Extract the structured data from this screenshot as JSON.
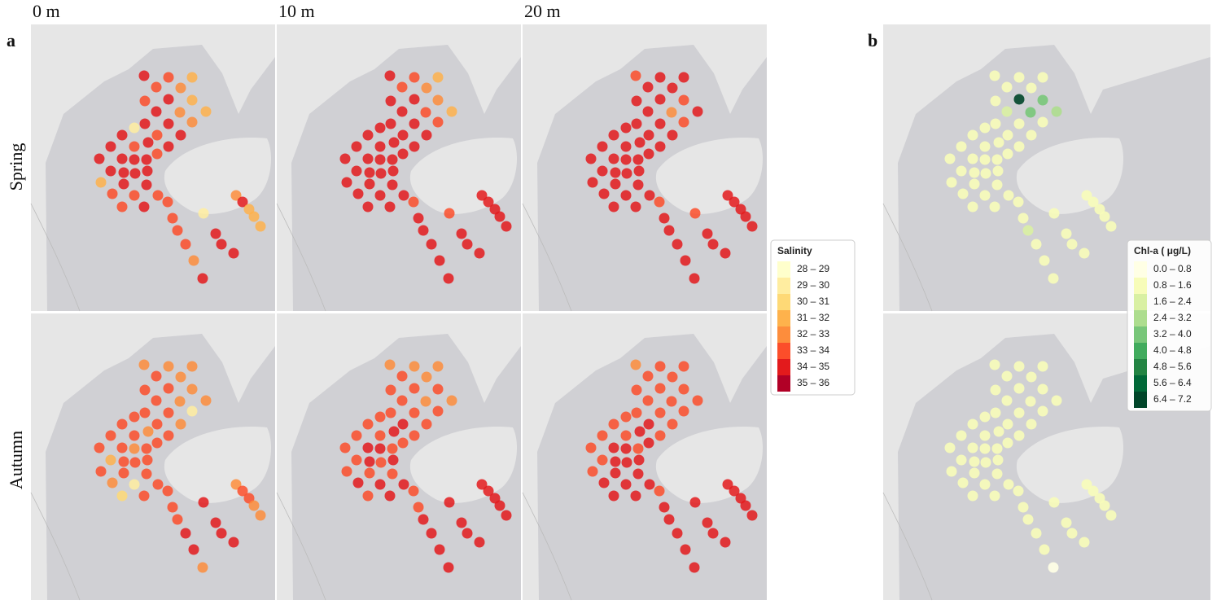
{
  "labels": {
    "a": "a",
    "b": "b"
  },
  "depths": [
    "0 m",
    "10 m",
    "20 m"
  ],
  "seasons": [
    "Spring",
    "Autumn"
  ],
  "salinity_legend": {
    "title": "Salinity",
    "bins": [
      28,
      29,
      30,
      31,
      32,
      33,
      34,
      35,
      36
    ],
    "labels": [
      "28 – 29",
      "29 – 30",
      "30 – 31",
      "31 – 32",
      "32 – 33",
      "33 – 34",
      "34 – 35",
      "35 – 36"
    ],
    "colors": [
      "#ffffcc",
      "#ffeda0",
      "#fed976",
      "#feb24c",
      "#fd8d3c",
      "#fc4e2a",
      "#e31a1c",
      "#b10026"
    ]
  },
  "chl_legend": {
    "title": "Chl-a ( μg/L)",
    "bins": [
      0,
      0.8,
      1.6,
      2.4,
      3.2,
      4.0,
      4.8,
      5.6,
      6.4,
      7.2
    ],
    "labels": [
      "0.0 – 0.8",
      "0.8 – 1.6",
      "1.6 – 2.4",
      "2.4 – 3.2",
      "3.2 – 4.0",
      "4.0 – 4.8",
      "4.8 – 5.6",
      "5.6 – 6.4",
      "6.4 – 7.2"
    ],
    "colors": [
      "#ffffe5",
      "#f7fcb9",
      "#d9f0a3",
      "#addd8e",
      "#78c679",
      "#41ab5d",
      "#238443",
      "#006837",
      "#004529"
    ]
  },
  "salinity": [
    [
      [
        34.5,
        33.5,
        31.5,
        33.5,
        32.5,
        34.5,
        31.5,
        33.5,
        34.5,
        32.5,
        31.5,
        29.5,
        34.5,
        34.5,
        32.5,
        34.5,
        33.5,
        34.5,
        34.5,
        33.5,
        34.5,
        34.5,
        34.5,
        34.5,
        34.5,
        34.5,
        33.5,
        34.5,
        34.5,
        34.5,
        34.5,
        31.5,
        33.5,
        34.5,
        33.5,
        34.5,
        33.5,
        33.5,
        34.5,
        33.5,
        33.5,
        33.5,
        33.5,
        32.5,
        34.5,
        29.5,
        34.5,
        34.5,
        34.5,
        32.5,
        34.5,
        31.5,
        31.5,
        31.5
      ],
      [
        34.5,
        33.5,
        31.5,
        33.5,
        32.5,
        34.5,
        32.5,
        34.5,
        34.5,
        33.5,
        31.5,
        34.5,
        34.5,
        34.5,
        33.5,
        34.5,
        34.5,
        34.5,
        34.5,
        34.5,
        34.5,
        34.5,
        34.5,
        34.5,
        34.5,
        34.5,
        34.5,
        34.5,
        34.5,
        34.5,
        34.5,
        34.5,
        34.5,
        34.5,
        34.5,
        34.5,
        34.5,
        34.5,
        34.5,
        33.5,
        34.5,
        34.5,
        34.5,
        34.5,
        34.5,
        33.5,
        34.5,
        34.5,
        34.5,
        34.5,
        34.5,
        34.5,
        34.5,
        34.5
      ],
      [
        33.5,
        34.5,
        34.5,
        34.5,
        34.5,
        34.5,
        33.5,
        34.5,
        34.5,
        32.5,
        34.5,
        34.5,
        34.5,
        34.5,
        33.5,
        34.5,
        34.5,
        34.5,
        34.5,
        34.5,
        34.5,
        34.5,
        34.5,
        34.5,
        34.5,
        34.5,
        34.5,
        34.5,
        34.5,
        34.5,
        34.5,
        34.5,
        34.5,
        34.5,
        34.5,
        34.5,
        34.5,
        34.5,
        34.5,
        33.5,
        34.5,
        34.5,
        34.5,
        34.5,
        34.5,
        33.5,
        34.5,
        34.5,
        34.5,
        34.5,
        34.5,
        34.5,
        34.5,
        34.5
      ]
    ],
    [
      [
        32.5,
        32.5,
        32.5,
        33.5,
        32.5,
        33.5,
        32.5,
        33.5,
        33.5,
        32.5,
        32.5,
        33.5,
        33.5,
        33.5,
        29.5,
        33.5,
        33.5,
        32.5,
        33.5,
        33.5,
        32.5,
        33.5,
        33.5,
        33.5,
        32.5,
        33.5,
        33.5,
        31.5,
        33.5,
        33.5,
        33.5,
        33.5,
        32.5,
        33.5,
        29.5,
        33.5,
        33.5,
        30.5,
        33.5,
        33.5,
        33.5,
        33.5,
        34.5,
        34.5,
        32.5,
        34.5,
        34.5,
        34.5,
        34.5,
        32.5,
        33.5,
        33.5,
        32.5,
        32.5
      ],
      [
        32.5,
        32.5,
        32.5,
        33.5,
        32.5,
        33.5,
        33.5,
        33.5,
        33.5,
        32.5,
        32.5,
        33.5,
        33.5,
        33.5,
        33.5,
        33.5,
        34.5,
        33.5,
        33.5,
        33.5,
        34.5,
        33.5,
        33.5,
        34.5,
        34.5,
        33.5,
        33.5,
        33.5,
        34.5,
        33.5,
        34.5,
        33.5,
        34.5,
        33.5,
        34.5,
        33.5,
        34.5,
        33.5,
        34.5,
        33.5,
        33.5,
        34.5,
        34.5,
        34.5,
        34.5,
        34.5,
        34.5,
        34.5,
        34.5,
        34.5,
        34.5,
        34.5,
        34.5,
        34.5
      ],
      [
        32.5,
        33.5,
        33.5,
        33.5,
        33.5,
        33.5,
        33.5,
        33.5,
        33.5,
        33.5,
        33.5,
        33.5,
        33.5,
        33.5,
        33.5,
        33.5,
        34.5,
        33.5,
        33.5,
        33.5,
        34.5,
        33.5,
        33.5,
        34.5,
        34.5,
        33.5,
        34.5,
        33.5,
        34.5,
        34.5,
        34.5,
        33.5,
        34.5,
        34.5,
        34.5,
        34.5,
        34.5,
        34.5,
        34.5,
        33.5,
        34.5,
        34.5,
        34.5,
        34.5,
        34.5,
        34.5,
        34.5,
        34.5,
        34.5,
        34.5,
        34.5,
        34.5,
        34.5,
        34.5
      ]
    ]
  ],
  "chl": [
    [
      1.2,
      1.2,
      1.2,
      1.2,
      1.2,
      6.8,
      3.6,
      1.2,
      2.0,
      3.6,
      2.8,
      1.2,
      1.2,
      1.2,
      1.2,
      1.2,
      1.2,
      1.2,
      1.2,
      1.2,
      1.2,
      1.2,
      1.2,
      1.2,
      1.2,
      1.2,
      1.2,
      1.2,
      1.2,
      1.2,
      1.2,
      1.2,
      1.2,
      1.2,
      1.2,
      1.2,
      1.2,
      1.2,
      1.2,
      1.2,
      1.2,
      2.0,
      1.2,
      1.2,
      1.2,
      1.2,
      1.2,
      1.2,
      1.2,
      1.2,
      1.2,
      1.2,
      1.2,
      1.2
    ],
    [
      1.2,
      1.2,
      1.2,
      1.2,
      1.2,
      1.2,
      1.2,
      1.2,
      1.2,
      1.2,
      1.2,
      1.2,
      1.2,
      1.2,
      1.2,
      1.2,
      1.2,
      1.2,
      1.2,
      1.2,
      1.2,
      1.2,
      1.2,
      1.2,
      1.2,
      1.2,
      1.2,
      1.2,
      1.2,
      1.2,
      1.2,
      1.2,
      1.2,
      1.2,
      1.2,
      1.2,
      1.2,
      1.2,
      1.2,
      1.2,
      1.2,
      1.2,
      1.2,
      1.2,
      0.4,
      1.2,
      1.2,
      1.2,
      1.2,
      1.2,
      1.2,
      1.2,
      1.2,
      1.2
    ]
  ]
}
